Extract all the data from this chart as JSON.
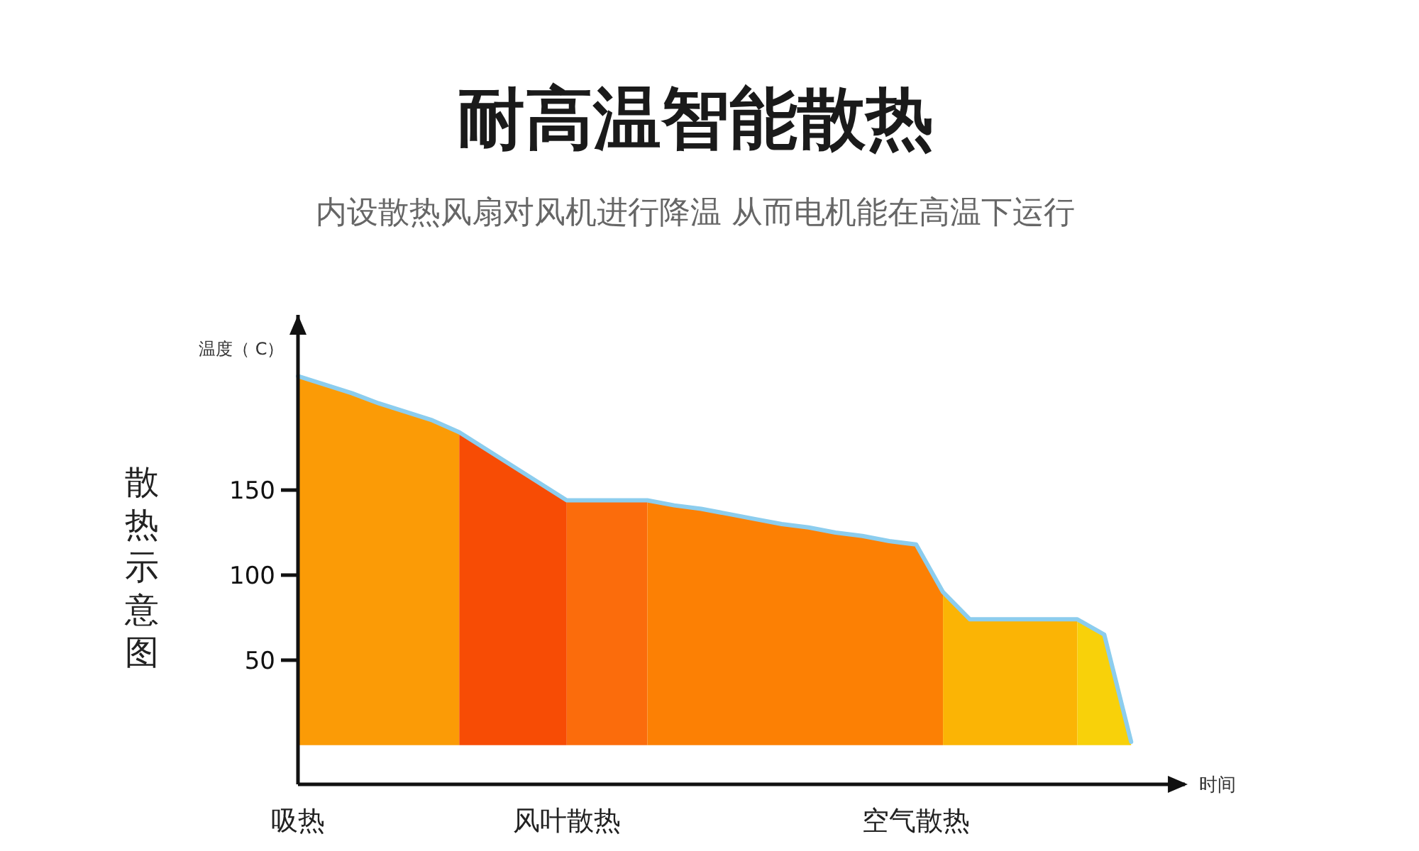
{
  "chart_data": {
    "type": "area",
    "title": "耐高温智能散热",
    "subtitle": "内设散热风扇对风机进行降温  从而电机能在高温下运行",
    "xlabel": "时间",
    "ylabel": "温度（ C）",
    "ylim": [
      -23,
      253
    ],
    "yticks": [
      50,
      100,
      150
    ],
    "categories": [
      "吸热",
      null,
      null,
      null,
      null,
      null,
      null,
      null,
      null,
      null,
      "风叶散热",
      null,
      null,
      null,
      null,
      null,
      null,
      null,
      null,
      null,
      null,
      null,
      null,
      "空气散热",
      null,
      null,
      null,
      null,
      null,
      null,
      null,
      null,
      null,
      null
    ],
    "series": [
      {
        "color": "#fb9b06",
        "values": [
          217,
          212,
          207,
          201,
          196,
          191,
          184,
          null,
          null,
          null,
          null,
          null,
          null,
          null,
          null,
          null,
          null,
          null,
          null,
          null,
          null,
          null,
          null,
          null,
          null,
          null,
          null,
          null,
          null,
          null,
          null,
          null,
          null,
          null
        ]
      },
      {
        "color": "#f74c05",
        "values": [
          null,
          null,
          null,
          null,
          null,
          null,
          184,
          174,
          164,
          154,
          144,
          null,
          null,
          null,
          null,
          null,
          null,
          null,
          null,
          null,
          null,
          null,
          null,
          null,
          null,
          null,
          null,
          null,
          null,
          null,
          null,
          null,
          null,
          null
        ]
      },
      {
        "color": "#fb6c0c",
        "values": [
          null,
          null,
          null,
          null,
          null,
          null,
          null,
          null,
          null,
          null,
          144,
          144,
          144,
          144,
          null,
          null,
          null,
          null,
          null,
          null,
          null,
          null,
          null,
          null,
          null,
          null,
          null,
          null,
          null,
          null,
          null,
          null,
          null,
          null
        ]
      },
      {
        "color": "#fc8004",
        "values": [
          null,
          null,
          null,
          null,
          null,
          null,
          null,
          null,
          null,
          null,
          null,
          null,
          null,
          144,
          141,
          139,
          136,
          133,
          130,
          128,
          125,
          123,
          120,
          118,
          90,
          null,
          null,
          null,
          null,
          null,
          null,
          null,
          null,
          null
        ]
      },
      {
        "color": "#fbb405",
        "values": [
          null,
          null,
          null,
          null,
          null,
          null,
          null,
          null,
          null,
          null,
          null,
          null,
          null,
          null,
          null,
          null,
          null,
          null,
          null,
          null,
          null,
          null,
          null,
          null,
          90,
          74,
          74,
          74,
          74,
          74,
          null,
          null,
          null,
          null
        ]
      },
      {
        "color": "#f8d10a",
        "values": [
          null,
          null,
          null,
          null,
          null,
          null,
          null,
          null,
          null,
          null,
          null,
          null,
          null,
          null,
          null,
          null,
          null,
          null,
          null,
          null,
          null,
          null,
          null,
          null,
          null,
          null,
          null,
          null,
          null,
          74,
          65,
          2,
          null,
          null
        ]
      },
      {
        "type": "line",
        "color": "#8ccdee",
        "values": [
          217,
          212,
          207,
          201,
          196,
          191,
          184,
          174,
          164,
          154,
          144,
          144,
          144,
          144,
          141,
          139,
          136,
          133,
          130,
          128,
          125,
          123,
          120,
          118,
          90,
          74,
          74,
          74,
          74,
          74,
          65,
          2,
          null,
          null
        ]
      }
    ],
    "annotations": [
      "散热示意图"
    ]
  }
}
